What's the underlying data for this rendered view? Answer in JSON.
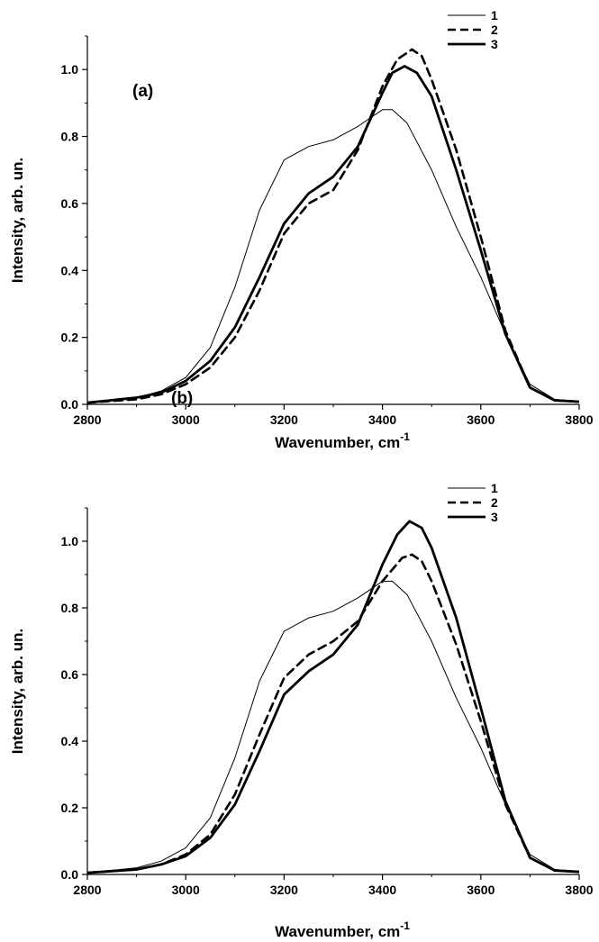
{
  "chart_data": [
    {
      "type": "line",
      "panel_label": "(a)",
      "xlabel": "Wavenumber, cm",
      "xlabel_sup": "-1",
      "ylabel": "Intensity, arb. un.",
      "xlim": [
        2800,
        3800
      ],
      "ylim": [
        0.0,
        1.1
      ],
      "xticks": [
        "2800",
        "3000",
        "3200",
        "3400",
        "3600",
        "3800"
      ],
      "yticks": [
        "0.0",
        "0.2",
        "0.4",
        "0.6",
        "0.8",
        "1.0"
      ],
      "grid": false,
      "legend_position": "top-right",
      "series": [
        {
          "name": "1",
          "style": "thin-solid",
          "x": [
            2800,
            2900,
            2950,
            3000,
            3050,
            3100,
            3150,
            3200,
            3250,
            3300,
            3350,
            3400,
            3420,
            3450,
            3500,
            3550,
            3600,
            3650,
            3700,
            3750,
            3800
          ],
          "y": [
            0.005,
            0.02,
            0.04,
            0.08,
            0.17,
            0.35,
            0.58,
            0.73,
            0.77,
            0.79,
            0.83,
            0.88,
            0.88,
            0.84,
            0.7,
            0.53,
            0.38,
            0.21,
            0.06,
            0.015,
            0.008
          ]
        },
        {
          "name": "2",
          "style": "dashed",
          "x": [
            2800,
            2900,
            2950,
            3000,
            3050,
            3100,
            3150,
            3200,
            3250,
            3300,
            3350,
            3400,
            3430,
            3460,
            3480,
            3500,
            3550,
            3600,
            3650,
            3700,
            3750,
            3800
          ],
          "y": [
            0.005,
            0.015,
            0.03,
            0.06,
            0.11,
            0.2,
            0.34,
            0.51,
            0.6,
            0.64,
            0.76,
            0.95,
            1.03,
            1.06,
            1.04,
            0.97,
            0.76,
            0.5,
            0.22,
            0.05,
            0.012,
            0.008
          ]
        },
        {
          "name": "3",
          "style": "thick-solid",
          "x": [
            2800,
            2900,
            2950,
            3000,
            3050,
            3100,
            3150,
            3200,
            3250,
            3300,
            3350,
            3400,
            3420,
            3445,
            3470,
            3500,
            3550,
            3600,
            3650,
            3700,
            3750,
            3800
          ],
          "y": [
            0.005,
            0.02,
            0.035,
            0.07,
            0.13,
            0.23,
            0.38,
            0.54,
            0.63,
            0.68,
            0.77,
            0.93,
            0.99,
            1.01,
            0.99,
            0.92,
            0.7,
            0.46,
            0.21,
            0.05,
            0.012,
            0.008
          ]
        }
      ]
    },
    {
      "type": "line",
      "panel_label": "(b)",
      "xlabel": "Wavenumber, cm",
      "xlabel_sup": "-1",
      "ylabel": "Intensity, arb. un.",
      "xlim": [
        2800,
        3800
      ],
      "ylim": [
        0.0,
        1.1
      ],
      "xticks": [
        "2800",
        "3000",
        "3200",
        "3400",
        "3600",
        "3800"
      ],
      "yticks": [
        "0.0",
        "0.2",
        "0.4",
        "0.6",
        "0.8",
        "1.0"
      ],
      "grid": false,
      "legend_position": "top-right",
      "series": [
        {
          "name": "1",
          "style": "thin-solid",
          "x": [
            2800,
            2900,
            2950,
            3000,
            3050,
            3100,
            3150,
            3200,
            3250,
            3300,
            3350,
            3400,
            3420,
            3450,
            3500,
            3550,
            3600,
            3650,
            3700,
            3750,
            3800
          ],
          "y": [
            0.005,
            0.02,
            0.04,
            0.08,
            0.17,
            0.35,
            0.58,
            0.73,
            0.77,
            0.79,
            0.83,
            0.88,
            0.88,
            0.84,
            0.7,
            0.53,
            0.38,
            0.21,
            0.06,
            0.015,
            0.008
          ]
        },
        {
          "name": "2",
          "style": "dashed",
          "x": [
            2800,
            2900,
            2950,
            3000,
            3050,
            3100,
            3150,
            3200,
            3250,
            3300,
            3350,
            3400,
            3440,
            3460,
            3480,
            3500,
            3550,
            3600,
            3650,
            3700,
            3750,
            3800
          ],
          "y": [
            0.005,
            0.015,
            0.03,
            0.06,
            0.12,
            0.24,
            0.42,
            0.59,
            0.66,
            0.7,
            0.76,
            0.88,
            0.95,
            0.96,
            0.94,
            0.88,
            0.69,
            0.46,
            0.21,
            0.05,
            0.012,
            0.008
          ]
        },
        {
          "name": "3",
          "style": "thick-solid",
          "x": [
            2800,
            2900,
            2950,
            3000,
            3050,
            3100,
            3150,
            3200,
            3250,
            3300,
            3350,
            3400,
            3430,
            3455,
            3480,
            3500,
            3550,
            3600,
            3650,
            3700,
            3750,
            3800
          ],
          "y": [
            0.005,
            0.015,
            0.03,
            0.055,
            0.11,
            0.21,
            0.37,
            0.54,
            0.61,
            0.66,
            0.75,
            0.93,
            1.02,
            1.06,
            1.04,
            0.98,
            0.77,
            0.5,
            0.22,
            0.05,
            0.012,
            0.008
          ]
        }
      ]
    }
  ]
}
